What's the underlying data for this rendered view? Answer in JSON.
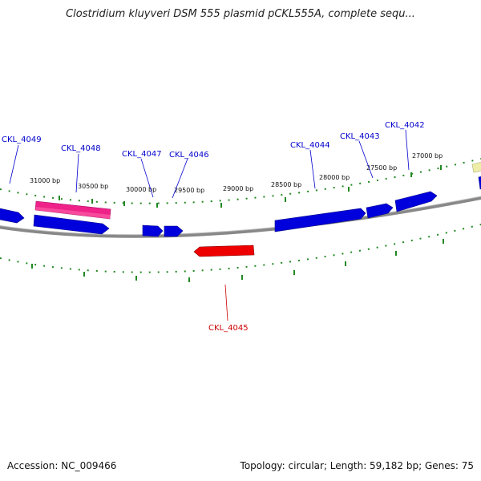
{
  "title": "Clostridium kluyveri DSM 555 plasmid pCKL555A, complete sequ...",
  "footer": {
    "accession": "Accession: NC_009466",
    "summary": "Topology: circular; Length: 59,182 bp; Genes: 75"
  },
  "colors": {
    "forward_gene": "#0000dd",
    "reverse_gene": "#ee0000",
    "highlight_feature": "#ee2288",
    "backbone": "#888888",
    "tick": "#228822",
    "label_forward": "#0000cc",
    "label_reverse": "#cc0000"
  },
  "scale_labels": [
    "31000 bp",
    "30500 bp",
    "30000 bp",
    "29500 bp",
    "29000 bp",
    "28500 bp",
    "28000 bp",
    "27500 bp",
    "27000 bp"
  ],
  "gene_labels": [
    {
      "name": "CKL_4049",
      "strand": "forward"
    },
    {
      "name": "CKL_4048",
      "strand": "forward"
    },
    {
      "name": "CKL_4047",
      "strand": "forward"
    },
    {
      "name": "CKL_4046",
      "strand": "forward"
    },
    {
      "name": "CKL_4044",
      "strand": "forward"
    },
    {
      "name": "CKL_4043",
      "strand": "forward"
    },
    {
      "name": "CKL_4042",
      "strand": "forward"
    },
    {
      "name": "CKL_4045",
      "strand": "reverse"
    }
  ]
}
